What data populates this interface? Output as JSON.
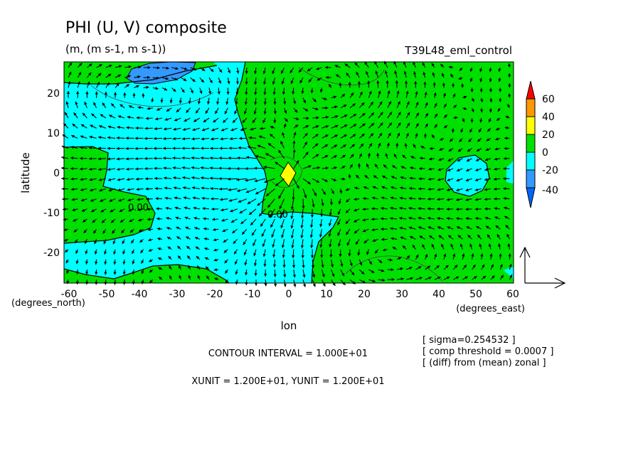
{
  "chart_data": {
    "type": "contour",
    "title": "PHI (U, V) composite",
    "subtitle": "(m, (m s-1, m s-1))",
    "run_label": "T39L48_eml_control",
    "xlabel": "lon",
    "ylabel": "latitude",
    "x_unit_note": "(degrees_east)",
    "y_unit_note": "(degrees_north)",
    "xlim": [
      -60,
      60
    ],
    "ylim": [
      -29,
      29
    ],
    "x_ticks": [
      "-60",
      "-50",
      "-40",
      "-30",
      "-20",
      "-10",
      "0",
      "10",
      "20",
      "30",
      "40",
      "50",
      "60"
    ],
    "y_ticks": [
      "-20",
      "-10",
      "0",
      "10",
      "20"
    ],
    "contour_labels": [
      "0.00",
      "0.00"
    ],
    "colorbar": {
      "labels": [
        "60",
        "40",
        "20",
        "0",
        "-20",
        "-40"
      ],
      "levels": [
        -40,
        -20,
        0,
        20,
        40,
        60
      ],
      "colors": [
        "#ff0000",
        "#ff9900",
        "#ffff00",
        "#00e000",
        "#00ffff",
        "#3399ff",
        "#0066ff"
      ]
    },
    "contour_interval": "CONTOUR INTERVAL = 1.000E+01",
    "vector_units": "XUNIT = 1.200E+01, YUNIT = 1.200E+01",
    "notes": [
      "[ sigma=0.254532 ]",
      "[ comp threshold = 0.0007 ]",
      "[ (diff) from (mean) zonal ]"
    ]
  }
}
